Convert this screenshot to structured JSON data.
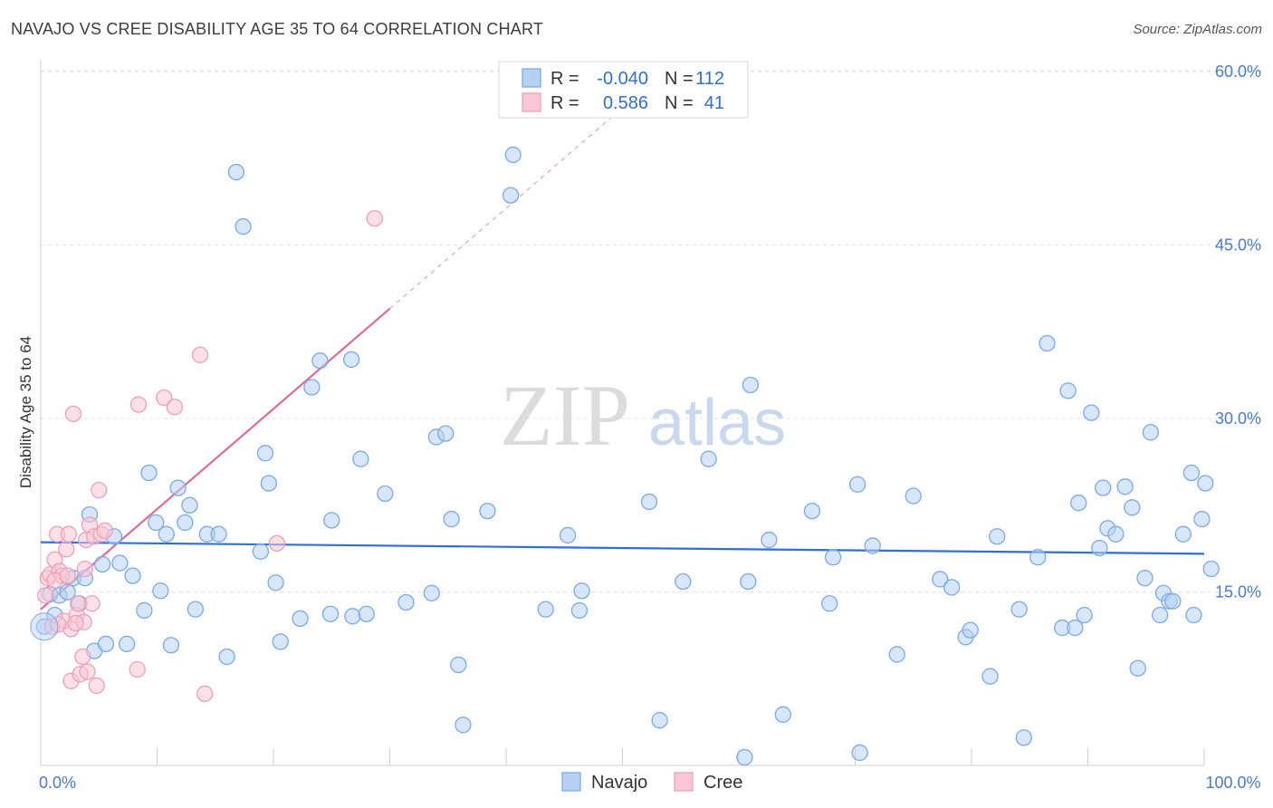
{
  "title": "NAVAJO VS CREE DISABILITY AGE 35 TO 64 CORRELATION CHART",
  "source": "Source: ZipAtlas.com",
  "watermark": {
    "zip": "ZIP",
    "atlas": "atlas"
  },
  "chart_data": {
    "type": "scatter",
    "xlabel": "",
    "ylabel": "Disability Age 35 to 64",
    "xlim": [
      0,
      100
    ],
    "ylim": [
      0,
      62
    ],
    "x_tick_labels": [
      {
        "value": 0,
        "label": "0.0%"
      },
      {
        "value": 100,
        "label": "100.0%"
      }
    ],
    "y_tick_labels": [
      {
        "value": 15,
        "label": "15.0%"
      },
      {
        "value": 30,
        "label": "30.0%"
      },
      {
        "value": 45,
        "label": "45.0%"
      },
      {
        "value": 60,
        "label": "60.0%"
      }
    ],
    "x_minor_ticks": [
      10,
      20,
      30,
      40,
      50,
      60,
      70,
      80,
      90,
      100
    ],
    "grid": true,
    "legend_position": "top-center",
    "stats": [
      {
        "name": "Navajo",
        "r_label": "R =",
        "r": "-0.040",
        "n_label": "N =",
        "n": "112"
      },
      {
        "name": "Cree",
        "r_label": "R =",
        "r": "0.586",
        "n_label": "N =",
        "n": "41"
      }
    ],
    "series": [
      {
        "name": "Navajo",
        "color": "#7aaae8",
        "fill": "#b7d1f3",
        "trend_color": "#2f6fd6",
        "trend": {
          "x0": 0,
          "y0": 19.3,
          "x1": 100,
          "y1": 18.3
        },
        "points": [
          [
            0.3,
            12.0
          ],
          [
            0.8,
            14.8
          ],
          [
            1.2,
            13.0
          ],
          [
            1.6,
            14.7
          ],
          [
            2.3,
            15.0
          ],
          [
            2.8,
            16.2
          ],
          [
            3.3,
            14.0
          ],
          [
            3.8,
            16.2
          ],
          [
            4.2,
            21.7
          ],
          [
            4.6,
            9.9
          ],
          [
            5.3,
            17.4
          ],
          [
            5.6,
            10.5
          ],
          [
            6.3,
            19.8
          ],
          [
            6.8,
            17.5
          ],
          [
            7.4,
            10.5
          ],
          [
            7.9,
            16.4
          ],
          [
            8.9,
            13.4
          ],
          [
            9.3,
            25.3
          ],
          [
            9.9,
            21.0
          ],
          [
            10.3,
            15.1
          ],
          [
            10.8,
            20.0
          ],
          [
            11.2,
            10.4
          ],
          [
            11.8,
            24.0
          ],
          [
            12.4,
            21.0
          ],
          [
            12.8,
            22.5
          ],
          [
            13.3,
            13.5
          ],
          [
            14.3,
            20.0
          ],
          [
            15.3,
            20.0
          ],
          [
            16.0,
            9.4
          ],
          [
            16.8,
            51.3
          ],
          [
            17.4,
            46.6
          ],
          [
            18.9,
            18.5
          ],
          [
            19.3,
            27.0
          ],
          [
            19.6,
            24.4
          ],
          [
            20.2,
            15.8
          ],
          [
            20.6,
            10.7
          ],
          [
            22.3,
            12.7
          ],
          [
            23.3,
            32.7
          ],
          [
            24.0,
            35.0
          ],
          [
            24.9,
            13.1
          ],
          [
            25.0,
            21.2
          ],
          [
            26.8,
            12.9
          ],
          [
            26.7,
            35.1
          ],
          [
            28.0,
            13.1
          ],
          [
            27.5,
            26.5
          ],
          [
            29.6,
            23.5
          ],
          [
            31.4,
            14.1
          ],
          [
            33.6,
            14.9
          ],
          [
            34.0,
            28.4
          ],
          [
            34.8,
            28.7
          ],
          [
            35.3,
            21.3
          ],
          [
            35.9,
            8.7
          ],
          [
            36.3,
            3.5
          ],
          [
            38.4,
            22.0
          ],
          [
            40.4,
            49.3
          ],
          [
            40.6,
            52.8
          ],
          [
            43.4,
            13.5
          ],
          [
            45.3,
            19.9
          ],
          [
            46.3,
            13.4
          ],
          [
            46.5,
            15.1
          ],
          [
            52.3,
            22.8
          ],
          [
            53.2,
            3.9
          ],
          [
            55.2,
            15.9
          ],
          [
            57.4,
            26.5
          ],
          [
            60.5,
            0.7
          ],
          [
            60.8,
            15.9
          ],
          [
            61.0,
            32.9
          ],
          [
            62.6,
            19.5
          ],
          [
            63.8,
            4.4
          ],
          [
            66.3,
            22.0
          ],
          [
            67.8,
            14.0
          ],
          [
            68.1,
            18.0
          ],
          [
            70.2,
            24.3
          ],
          [
            70.4,
            1.1
          ],
          [
            71.5,
            19.0
          ],
          [
            73.6,
            9.6
          ],
          [
            75.0,
            23.3
          ],
          [
            77.3,
            16.1
          ],
          [
            78.3,
            15.4
          ],
          [
            79.5,
            11.1
          ],
          [
            79.9,
            11.7
          ],
          [
            81.6,
            7.7
          ],
          [
            82.2,
            19.8
          ],
          [
            84.1,
            13.5
          ],
          [
            84.5,
            2.4
          ],
          [
            85.7,
            18.0
          ],
          [
            86.5,
            36.5
          ],
          [
            87.8,
            11.9
          ],
          [
            88.3,
            32.4
          ],
          [
            88.9,
            11.9
          ],
          [
            89.2,
            22.7
          ],
          [
            89.7,
            13.0
          ],
          [
            90.3,
            30.5
          ],
          [
            91.0,
            18.8
          ],
          [
            91.3,
            24.0
          ],
          [
            91.7,
            20.5
          ],
          [
            92.4,
            20.0
          ],
          [
            93.2,
            24.1
          ],
          [
            93.8,
            22.3
          ],
          [
            94.3,
            8.4
          ],
          [
            94.9,
            16.2
          ],
          [
            95.4,
            28.8
          ],
          [
            96.2,
            13.0
          ],
          [
            96.5,
            14.9
          ],
          [
            97.0,
            14.2
          ],
          [
            97.3,
            14.2
          ],
          [
            98.2,
            20.0
          ],
          [
            98.9,
            25.3
          ],
          [
            99.1,
            13.0
          ],
          [
            99.8,
            21.3
          ],
          [
            100.1,
            24.4
          ],
          [
            100.6,
            17.0
          ]
        ]
      },
      {
        "name": "Cree",
        "color": "#eea0b9",
        "fill": "#f8c6d6",
        "trend_color": "#e06a96",
        "trend": {
          "x0": 0,
          "y0": 13.5,
          "x1": 30,
          "y1": 39.5
        },
        "trend_extension": {
          "x0": 30,
          "y0": 39.5,
          "x1": 50.5,
          "y1": 57.3
        },
        "points": [
          [
            0.4,
            14.7
          ],
          [
            0.6,
            16.2
          ],
          [
            0.8,
            16.5
          ],
          [
            1.0,
            12.0
          ],
          [
            1.2,
            17.8
          ],
          [
            1.4,
            20.0
          ],
          [
            1.6,
            16.8
          ],
          [
            1.8,
            16.4
          ],
          [
            2.0,
            12.5
          ],
          [
            2.2,
            18.7
          ],
          [
            2.4,
            20.0
          ],
          [
            2.6,
            11.8
          ],
          [
            2.8,
            30.4
          ],
          [
            2.6,
            7.3
          ],
          [
            3.1,
            13.0
          ],
          [
            3.2,
            14.0
          ],
          [
            3.4,
            7.9
          ],
          [
            3.6,
            9.4
          ],
          [
            3.7,
            12.4
          ],
          [
            3.8,
            17.0
          ],
          [
            3.9,
            19.5
          ],
          [
            4.0,
            8.1
          ],
          [
            4.2,
            20.8
          ],
          [
            4.4,
            14.0
          ],
          [
            4.6,
            19.8
          ],
          [
            4.8,
            6.9
          ],
          [
            5.0,
            23.8
          ],
          [
            5.2,
            20.0
          ],
          [
            5.5,
            20.3
          ],
          [
            8.3,
            8.3
          ],
          [
            8.4,
            31.2
          ],
          [
            10.6,
            31.8
          ],
          [
            11.5,
            31.0
          ],
          [
            13.7,
            35.5
          ],
          [
            14.1,
            6.2
          ],
          [
            20.3,
            19.2
          ],
          [
            28.7,
            47.3
          ],
          [
            1.2,
            16.0
          ],
          [
            2.3,
            16.4
          ],
          [
            3.0,
            12.3
          ],
          [
            1.5,
            12.2
          ]
        ]
      }
    ]
  },
  "legend_bottom": [
    "Navajo",
    "Cree"
  ]
}
